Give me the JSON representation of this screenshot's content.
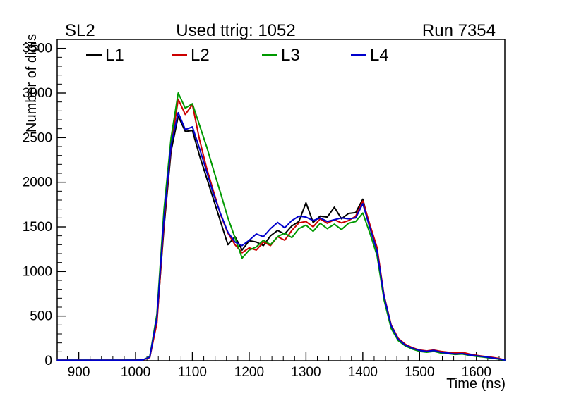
{
  "header": {
    "left_title": "SL2",
    "center_title": "Used ttrig: 1052",
    "right_title": "Run 7354"
  },
  "colors": {
    "axis": "#000000",
    "background": "#ffffff"
  },
  "chart_data": {
    "type": "line",
    "title": "SL2",
    "xlabel": "Time (ns)",
    "ylabel": "Number of digis",
    "xlim": [
      862,
      1650
    ],
    "ylim": [
      0,
      3600
    ],
    "x_major_ticks": [
      900,
      1000,
      1100,
      1200,
      1300,
      1400,
      1500,
      1600
    ],
    "x_minor_step": 20,
    "y_major_ticks": [
      0,
      500,
      1000,
      1500,
      2000,
      2500,
      3000,
      3500
    ],
    "y_minor_step": 100,
    "legend_position": "top-inside-row",
    "x": [
      862.5,
      875,
      887.5,
      900,
      912.5,
      925,
      937.5,
      950,
      962.5,
      975,
      987.5,
      1000,
      1012.5,
      1025,
      1037.5,
      1050,
      1062.5,
      1075,
      1087.5,
      1100,
      1112.5,
      1125,
      1137.5,
      1150,
      1162.5,
      1175,
      1187.5,
      1200,
      1212.5,
      1225,
      1237.5,
      1250,
      1262.5,
      1275,
      1287.5,
      1300,
      1312.5,
      1325,
      1337.5,
      1350,
      1362.5,
      1375,
      1387.5,
      1400,
      1412.5,
      1425,
      1437.5,
      1450,
      1462.5,
      1475,
      1487.5,
      1500,
      1512.5,
      1525,
      1537.5,
      1550,
      1562.5,
      1575,
      1587.5,
      1600,
      1612.5,
      1625,
      1637.5,
      1650
    ],
    "series": [
      {
        "name": "L1",
        "color": "#000000",
        "values": [
          5,
          6,
          5,
          6,
          5,
          6,
          5,
          6,
          5,
          6,
          6,
          7,
          9,
          40,
          450,
          1500,
          2350,
          2740,
          2570,
          2580,
          2300,
          2050,
          1800,
          1550,
          1300,
          1390,
          1240,
          1345,
          1330,
          1290,
          1400,
          1460,
          1420,
          1510,
          1560,
          1770,
          1550,
          1620,
          1610,
          1720,
          1590,
          1650,
          1660,
          1810,
          1500,
          1230,
          700,
          380,
          235,
          170,
          135,
          110,
          100,
          110,
          90,
          85,
          75,
          80,
          65,
          55,
          45,
          35,
          25,
          8
        ]
      },
      {
        "name": "L2",
        "color": "#cc0000",
        "values": [
          5,
          6,
          5,
          6,
          5,
          6,
          5,
          6,
          5,
          6,
          5,
          6,
          8,
          35,
          420,
          1550,
          2400,
          2930,
          2760,
          2870,
          2480,
          2160,
          1890,
          1630,
          1430,
          1300,
          1210,
          1265,
          1240,
          1330,
          1290,
          1390,
          1350,
          1460,
          1545,
          1560,
          1500,
          1590,
          1540,
          1580,
          1545,
          1570,
          1620,
          1790,
          1525,
          1270,
          730,
          400,
          250,
          185,
          145,
          120,
          110,
          120,
          105,
          95,
          90,
          95,
          75,
          60,
          50,
          40,
          28,
          10
        ]
      },
      {
        "name": "L3",
        "color": "#009900",
        "values": [
          5,
          5,
          6,
          5,
          6,
          5,
          6,
          5,
          6,
          5,
          6,
          5,
          8,
          45,
          520,
          1700,
          2500,
          3000,
          2830,
          2880,
          2640,
          2400,
          2130,
          1870,
          1600,
          1380,
          1150,
          1240,
          1275,
          1350,
          1300,
          1390,
          1430,
          1380,
          1480,
          1520,
          1450,
          1540,
          1480,
          1530,
          1470,
          1540,
          1560,
          1655,
          1430,
          1180,
          680,
          360,
          225,
          165,
          130,
          105,
          95,
          105,
          85,
          80,
          70,
          75,
          60,
          50,
          40,
          30,
          20,
          5
        ]
      },
      {
        "name": "L4",
        "color": "#0000cc",
        "values": [
          6,
          5,
          6,
          5,
          6,
          5,
          6,
          5,
          6,
          5,
          6,
          5,
          9,
          40,
          480,
          1600,
          2420,
          2780,
          2590,
          2620,
          2380,
          2120,
          1860,
          1640,
          1440,
          1330,
          1290,
          1350,
          1420,
          1390,
          1480,
          1550,
          1490,
          1570,
          1620,
          1610,
          1570,
          1600,
          1560,
          1580,
          1600,
          1590,
          1600,
          1760,
          1490,
          1230,
          720,
          390,
          240,
          175,
          140,
          115,
          105,
          115,
          95,
          85,
          75,
          80,
          65,
          55,
          45,
          35,
          22,
          8
        ]
      }
    ]
  }
}
